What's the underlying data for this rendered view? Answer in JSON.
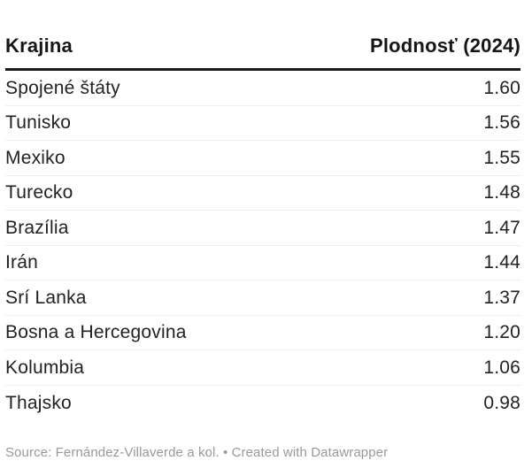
{
  "chart_data": {
    "type": "table",
    "title": "",
    "columns": [
      "Krajina",
      "Plodnosť (2024)"
    ],
    "categories": [
      "Spojené štáty",
      "Tunisko",
      "Mexiko",
      "Turecko",
      "Brazília",
      "Irán",
      "Srí Lanka",
      "Bosna a Hercegovina",
      "Kolumbia",
      "Thajsko"
    ],
    "values": [
      1.6,
      1.56,
      1.55,
      1.48,
      1.47,
      1.44,
      1.37,
      1.2,
      1.06,
      0.98
    ],
    "source": "Fernández-Villaverde a kol.",
    "credit": "Created with Datawrapper"
  },
  "table": {
    "columns": [
      {
        "label": "Krajina",
        "align": "left"
      },
      {
        "label": "Plodnosť (2024)",
        "align": "right"
      }
    ],
    "rows": [
      {
        "country": "Spojené štáty",
        "value": "1.60"
      },
      {
        "country": "Tunisko",
        "value": "1.56"
      },
      {
        "country": "Mexiko",
        "value": "1.55"
      },
      {
        "country": "Turecko",
        "value": "1.48"
      },
      {
        "country": "Brazília",
        "value": "1.47"
      },
      {
        "country": "Irán",
        "value": "1.44"
      },
      {
        "country": "Srí Lanka",
        "value": "1.37"
      },
      {
        "country": "Bosna a Hercegovina",
        "value": "1.20"
      },
      {
        "country": "Kolumbia",
        "value": "1.06"
      },
      {
        "country": "Thajsko",
        "value": "0.98"
      }
    ]
  },
  "footer": {
    "source_text": "Source: Fernández-Villaverde a kol.",
    "separator": " • ",
    "credit_text": "Created with Datawrapper"
  },
  "colors": {
    "text": "#222222",
    "header_text": "#161616",
    "header_border": "#1a1a1a",
    "row_separator": "#eeeeee",
    "footer_text": "#999999",
    "background": "#ffffff"
  }
}
